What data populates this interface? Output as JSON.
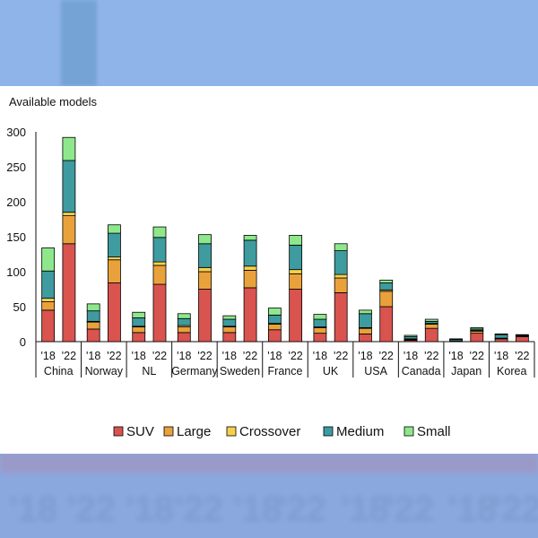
{
  "chart_data": {
    "type": "bar",
    "stacked": true,
    "ylabel": "Available models",
    "ylim": [
      0,
      300
    ],
    "yticks": [
      0,
      50,
      100,
      150,
      200,
      250,
      300
    ],
    "groups": [
      "China",
      "Norway",
      "NL",
      "Germany",
      "Sweden",
      "France",
      "UK",
      "USA",
      "Canada",
      "Japan",
      "Korea"
    ],
    "subcategories": [
      "'18",
      "'22"
    ],
    "series": [
      {
        "name": "SUV",
        "color": "#d9534f",
        "values": [
          [
            45,
            140
          ],
          [
            18,
            84
          ],
          [
            13,
            82
          ],
          [
            13,
            75
          ],
          [
            13,
            77
          ],
          [
            17,
            75
          ],
          [
            12,
            70
          ],
          [
            11,
            50
          ],
          [
            2,
            19
          ],
          [
            1,
            12
          ],
          [
            4,
            7
          ]
        ]
      },
      {
        "name": "Large",
        "color": "#e9a23b",
        "values": [
          [
            12,
            40
          ],
          [
            10,
            33
          ],
          [
            8,
            27
          ],
          [
            8,
            25
          ],
          [
            8,
            25
          ],
          [
            8,
            22
          ],
          [
            8,
            21
          ],
          [
            8,
            22
          ],
          [
            1,
            6
          ],
          [
            0,
            3
          ],
          [
            1,
            1
          ]
        ]
      },
      {
        "name": "Crossover",
        "color": "#f6d04d",
        "values": [
          [
            5,
            5
          ],
          [
            1,
            4
          ],
          [
            1,
            5
          ],
          [
            2,
            6
          ],
          [
            1,
            6
          ],
          [
            1,
            6
          ],
          [
            1,
            5
          ],
          [
            1,
            2
          ],
          [
            1,
            1
          ],
          [
            0,
            1
          ],
          [
            0,
            0
          ]
        ]
      },
      {
        "name": "Medium",
        "color": "#3e9b9f",
        "values": [
          [
            39,
            74
          ],
          [
            15,
            34
          ],
          [
            12,
            35
          ],
          [
            10,
            34
          ],
          [
            10,
            37
          ],
          [
            12,
            35
          ],
          [
            11,
            34
          ],
          [
            20,
            10
          ],
          [
            3,
            3
          ],
          [
            2,
            2
          ],
          [
            5,
            1
          ]
        ]
      },
      {
        "name": "Small",
        "color": "#8ee88b",
        "values": [
          [
            33,
            33
          ],
          [
            10,
            12
          ],
          [
            8,
            15
          ],
          [
            7,
            13
          ],
          [
            5,
            7
          ],
          [
            10,
            14
          ],
          [
            7,
            10
          ],
          [
            5,
            4
          ],
          [
            2,
            3
          ],
          [
            1,
            2
          ],
          [
            1,
            1
          ]
        ]
      }
    ],
    "legend_position": "bottom",
    "grid": false
  }
}
